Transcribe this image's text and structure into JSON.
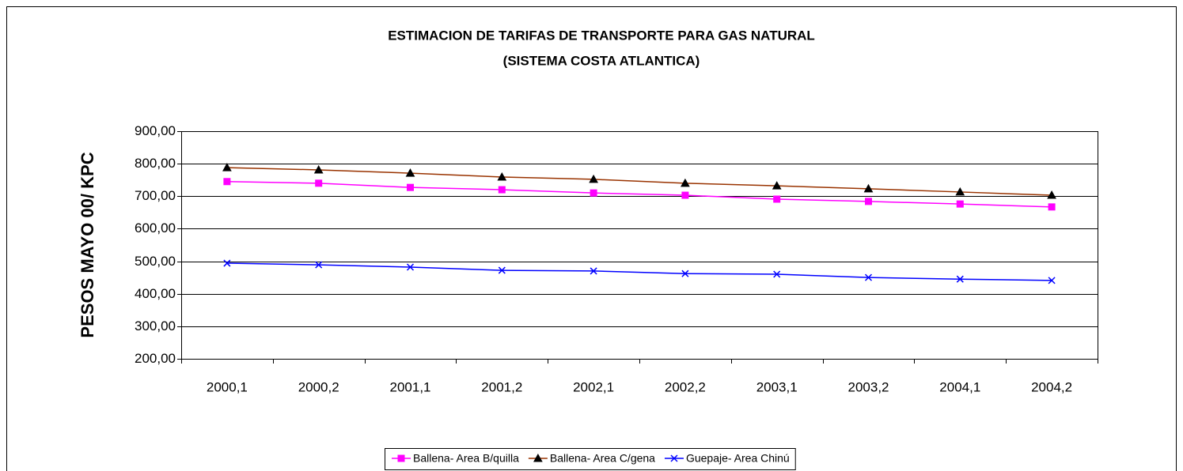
{
  "chart_data": {
    "type": "line",
    "title": "ESTIMACION DE TARIFAS  DE TRANSPORTE PARA GAS NATURAL",
    "subtitle": "(SISTEMA COSTA ATLANTICA)",
    "y_label": "PESOS MAYO 00/ KPC",
    "categories": [
      "2000,1",
      "2000,2",
      "2001,1",
      "2001,2",
      "2002,1",
      "2002,2",
      "2003,1",
      "2003,2",
      "2004,1",
      "2004,2"
    ],
    "series": [
      {
        "name": "Ballena- Area B/quilla",
        "color": "#ff00ff",
        "marker": "square",
        "values": [
          745,
          740,
          727,
          720,
          710,
          703,
          691,
          684,
          676,
          667
        ]
      },
      {
        "name": "Ballena- Area C/gena",
        "color": "#993300",
        "marker": "triangle",
        "values": [
          788,
          781,
          771,
          759,
          752,
          740,
          732,
          723,
          713,
          703
        ]
      },
      {
        "name": "Guepaje- Area Chinú",
        "color": "#0000ff",
        "marker": "x",
        "values": [
          494,
          489,
          482,
          472,
          470,
          462,
          460,
          450,
          445,
          441
        ]
      }
    ],
    "ylim": [
      200,
      900
    ],
    "yticks": [
      {
        "value": 200,
        "label": "200,00"
      },
      {
        "value": 300,
        "label": "300,00"
      },
      {
        "value": 400,
        "label": "400,00"
      },
      {
        "value": 500,
        "label": "500,00"
      },
      {
        "value": 600,
        "label": "600,00"
      },
      {
        "value": 700,
        "label": "700,00"
      },
      {
        "value": 800,
        "label": "800,00"
      },
      {
        "value": 900,
        "label": "900,00"
      }
    ],
    "grid": true,
    "legend": "bottom"
  }
}
